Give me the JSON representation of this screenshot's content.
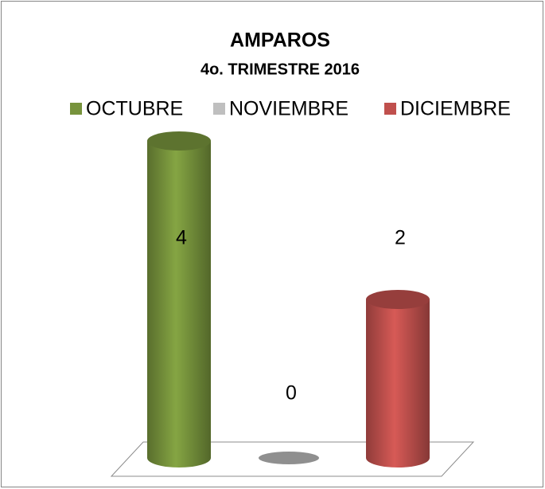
{
  "chart_data": {
    "type": "bar",
    "title": "AMPAROS",
    "subtitle": "4o. TRIMESTRE 2016",
    "categories": [
      null
    ],
    "series": [
      {
        "name": "OCTUBRE",
        "color": "#77933c",
        "values": [
          4
        ]
      },
      {
        "name": "NOVIEMBRE",
        "color": "#bfbfbf",
        "values": [
          0
        ]
      },
      {
        "name": "DICIEMBRE",
        "color": "#c0504d",
        "values": [
          2
        ]
      }
    ]
  }
}
